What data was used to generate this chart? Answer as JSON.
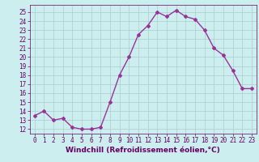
{
  "x": [
    0,
    1,
    2,
    3,
    4,
    5,
    6,
    7,
    8,
    9,
    10,
    11,
    12,
    13,
    14,
    15,
    16,
    17,
    18,
    19,
    20,
    21,
    22,
    23
  ],
  "y": [
    13.5,
    14.0,
    13.0,
    13.2,
    12.2,
    12.0,
    12.0,
    12.2,
    15.0,
    18.0,
    20.0,
    22.5,
    23.5,
    25.0,
    24.5,
    25.2,
    24.5,
    24.2,
    23.0,
    21.0,
    20.2,
    18.5,
    16.5,
    16.5
  ],
  "line_color": "#993399",
  "marker": "D",
  "marker_size": 2.0,
  "line_width": 1.0,
  "bg_color": "#cceeee",
  "grid_color": "#aacccc",
  "xlabel": "Windchill (Refroidissement éolien,°C)",
  "xlabel_fontsize": 6.5,
  "xlabel_color": "#660066",
  "tick_color": "#660066",
  "tick_fontsize": 5.5,
  "ylim": [
    11.5,
    25.8
  ],
  "xlim": [
    -0.5,
    23.5
  ],
  "yticks": [
    12,
    13,
    14,
    15,
    16,
    17,
    18,
    19,
    20,
    21,
    22,
    23,
    24,
    25
  ],
  "xticks": [
    0,
    1,
    2,
    3,
    4,
    5,
    6,
    7,
    8,
    9,
    10,
    11,
    12,
    13,
    14,
    15,
    16,
    17,
    18,
    19,
    20,
    21,
    22,
    23
  ]
}
